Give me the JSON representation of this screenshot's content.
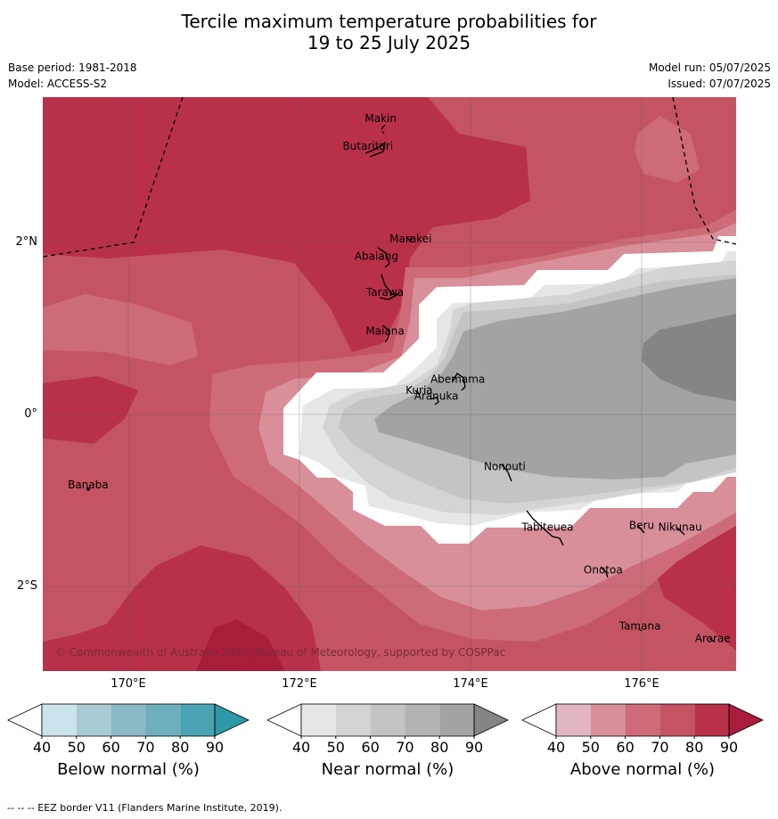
{
  "title_line1": "Tercile maximum temperature probabilities for",
  "title_line2": "19 to 25 July 2025",
  "base_period": "Base period: 1981-2018",
  "model": "Model: ACCESS-S2",
  "model_run": "Model run: 05/07/2025",
  "issued": "Issued: 07/07/2025",
  "copyright": "© Commonwealth of Australia 2025, Bureau of Meteorology, supported by COSPPac",
  "footnote": "--  --  -- EEZ border V11 (Flanders Marine Institute, 2019).",
  "lon_labels": [
    "170°E",
    "172°E",
    "174°E",
    "176°E"
  ],
  "lat_labels": [
    "2°N",
    "0°",
    "2°S"
  ],
  "places": [
    {
      "name": "Makin",
      "lon": 172.95,
      "lat": 3.4
    },
    {
      "name": "Butaritari",
      "lon": 172.8,
      "lat": 3.08
    },
    {
      "name": "Marakei",
      "lon": 173.3,
      "lat": 2.0
    },
    {
      "name": "Abaiang",
      "lon": 172.9,
      "lat": 1.8
    },
    {
      "name": "Tarawa",
      "lon": 173.0,
      "lat": 1.38
    },
    {
      "name": "Maiana",
      "lon": 173.0,
      "lat": 0.93
    },
    {
      "name": "Abemama",
      "lon": 173.85,
      "lat": 0.37
    },
    {
      "name": "Kuria",
      "lon": 173.4,
      "lat": 0.24
    },
    {
      "name": "Aranuka",
      "lon": 173.6,
      "lat": 0.17
    },
    {
      "name": "Nonouti",
      "lon": 174.4,
      "lat": -0.65
    },
    {
      "name": "Tabiteuea",
      "lon": 174.9,
      "lat": -1.35
    },
    {
      "name": "Beru",
      "lon": 176.0,
      "lat": -1.33
    },
    {
      "name": "Nikunau",
      "lon": 176.45,
      "lat": -1.35
    },
    {
      "name": "Onotoa",
      "lon": 175.55,
      "lat": -1.85
    },
    {
      "name": "Tamana",
      "lon": 175.98,
      "lat": -2.5
    },
    {
      "name": "Arorae",
      "lon": 176.83,
      "lat": -2.65
    },
    {
      "name": "Banaba",
      "lon": 169.53,
      "lat": -0.86
    }
  ],
  "colorbars": [
    {
      "title": "Below normal (%)",
      "ticks": [
        "40",
        "50",
        "60",
        "70",
        "80",
        "90"
      ],
      "colors": [
        "#ffffff",
        "#cbe3ea",
        "#a9cbd3",
        "#8bb9c5",
        "#6eaebd",
        "#49a3b3",
        "#2e97a8"
      ]
    },
    {
      "title": "Near normal (%)",
      "ticks": [
        "40",
        "50",
        "60",
        "70",
        "80",
        "90"
      ],
      "colors": [
        "#ffffff",
        "#e6e6e6",
        "#d4d4d4",
        "#c4c4c4",
        "#b3b3b3",
        "#a3a3a3",
        "#858585"
      ]
    },
    {
      "title": "Above normal (%)",
      "ticks": [
        "40",
        "50",
        "60",
        "70",
        "80",
        "90"
      ],
      "colors": [
        "#ffffff",
        "#e2b7bf",
        "#d88f9a",
        "#cd6b78",
        "#c45464",
        "#b8304a",
        "#a91c3c"
      ]
    }
  ]
}
